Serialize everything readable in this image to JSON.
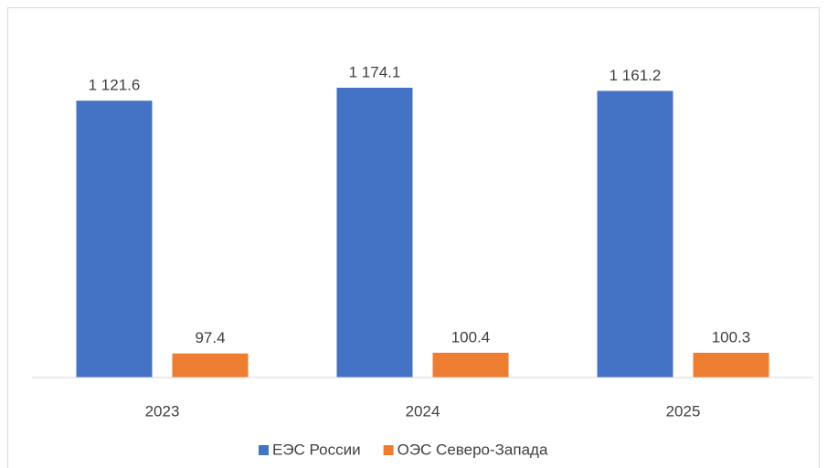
{
  "chart_data": {
    "type": "bar",
    "categories": [
      "2023",
      "2024",
      "2025"
    ],
    "series": [
      {
        "name": "ЕЭС России",
        "color": "#4472c4",
        "values": [
          1121.6,
          1174.1,
          1161.2
        ],
        "value_labels": [
          "1 121.6",
          "1 174.1",
          "1 161.2"
        ]
      },
      {
        "name": "ОЭС Северо-Запада",
        "color": "#ed7d31",
        "values": [
          97.4,
          100.4,
          100.3
        ],
        "value_labels": [
          "97.4",
          "100.4",
          "100.3"
        ]
      }
    ],
    "ylim": [
      0,
      1400
    ],
    "legend": "bottom"
  }
}
